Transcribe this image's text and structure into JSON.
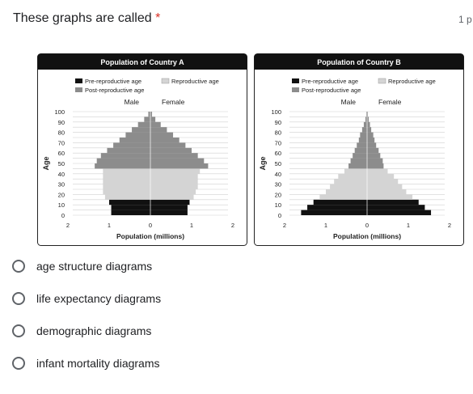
{
  "question": {
    "title": "These graphs are called",
    "required_mark": "*",
    "points": "1 p"
  },
  "figure": {
    "legend": {
      "pre": "Pre-reproductive age",
      "repro": "Reproductive age",
      "post": "Post-reproductive age",
      "colors": {
        "pre": "#111111",
        "repro": "#d4d4d4",
        "post": "#8c8c8c"
      }
    },
    "side_labels": {
      "male": "Male",
      "female": "Female"
    },
    "y_label": "Age",
    "y_ticks": [
      "100",
      "90",
      "80",
      "70",
      "60",
      "50",
      "40",
      "30",
      "20",
      "10",
      "0"
    ],
    "x_label": "Population (millions)",
    "x_ticks": [
      "2",
      "1",
      "0",
      "1",
      "2"
    ]
  },
  "chart_data": [
    {
      "type": "bar",
      "title": "Population of Country A",
      "xlabel": "Population (millions)",
      "ylabel": "Age",
      "xlim": [
        -2,
        2
      ],
      "ylim": [
        0,
        100
      ],
      "age_groups": [
        0,
        5,
        10,
        15,
        20,
        25,
        30,
        35,
        40,
        45,
        50,
        55,
        60,
        65,
        70,
        75,
        80,
        85,
        90,
        95
      ],
      "categories": [
        "pre",
        "pre",
        "pre",
        "repro",
        "repro",
        "repro",
        "repro",
        "repro",
        "repro",
        "post",
        "post",
        "post",
        "post",
        "post",
        "post",
        "post",
        "post",
        "post",
        "post",
        "post"
      ],
      "series": [
        {
          "name": "Male",
          "values": [
            0.95,
            0.95,
            1.0,
            1.1,
            1.15,
            1.15,
            1.15,
            1.15,
            1.15,
            1.35,
            1.3,
            1.2,
            1.05,
            0.9,
            0.75,
            0.6,
            0.45,
            0.3,
            0.15,
            0.05
          ]
        },
        {
          "name": "Female",
          "values": [
            0.9,
            0.9,
            0.95,
            1.05,
            1.1,
            1.15,
            1.15,
            1.15,
            1.2,
            1.4,
            1.3,
            1.15,
            1.0,
            0.85,
            0.7,
            0.55,
            0.4,
            0.25,
            0.12,
            0.04
          ]
        }
      ]
    },
    {
      "type": "bar",
      "title": "Population of Country B",
      "xlabel": "Population (millions)",
      "ylabel": "Age",
      "xlim": [
        -2,
        2
      ],
      "ylim": [
        0,
        100
      ],
      "age_groups": [
        0,
        5,
        10,
        15,
        20,
        25,
        30,
        35,
        40,
        45,
        50,
        55,
        60,
        65,
        70,
        75,
        80,
        85,
        90,
        95
      ],
      "categories": [
        "pre",
        "pre",
        "pre",
        "repro",
        "repro",
        "repro",
        "repro",
        "repro",
        "repro",
        "post",
        "post",
        "post",
        "post",
        "post",
        "post",
        "post",
        "post",
        "post",
        "post",
        "post"
      ],
      "series": [
        {
          "name": "Male",
          "values": [
            1.6,
            1.45,
            1.3,
            1.15,
            1.0,
            0.9,
            0.8,
            0.7,
            0.55,
            0.45,
            0.4,
            0.35,
            0.3,
            0.25,
            0.2,
            0.17,
            0.12,
            0.08,
            0.04,
            0.02
          ]
        },
        {
          "name": "Female",
          "values": [
            1.55,
            1.4,
            1.25,
            1.1,
            0.95,
            0.85,
            0.75,
            0.65,
            0.5,
            0.4,
            0.38,
            0.32,
            0.28,
            0.22,
            0.18,
            0.15,
            0.1,
            0.07,
            0.04,
            0.02
          ]
        }
      ]
    }
  ],
  "options": [
    {
      "label": "age structure diagrams"
    },
    {
      "label": "life expectancy diagrams"
    },
    {
      "label": "demographic diagrams"
    },
    {
      "label": "infant mortality diagrams"
    }
  ]
}
